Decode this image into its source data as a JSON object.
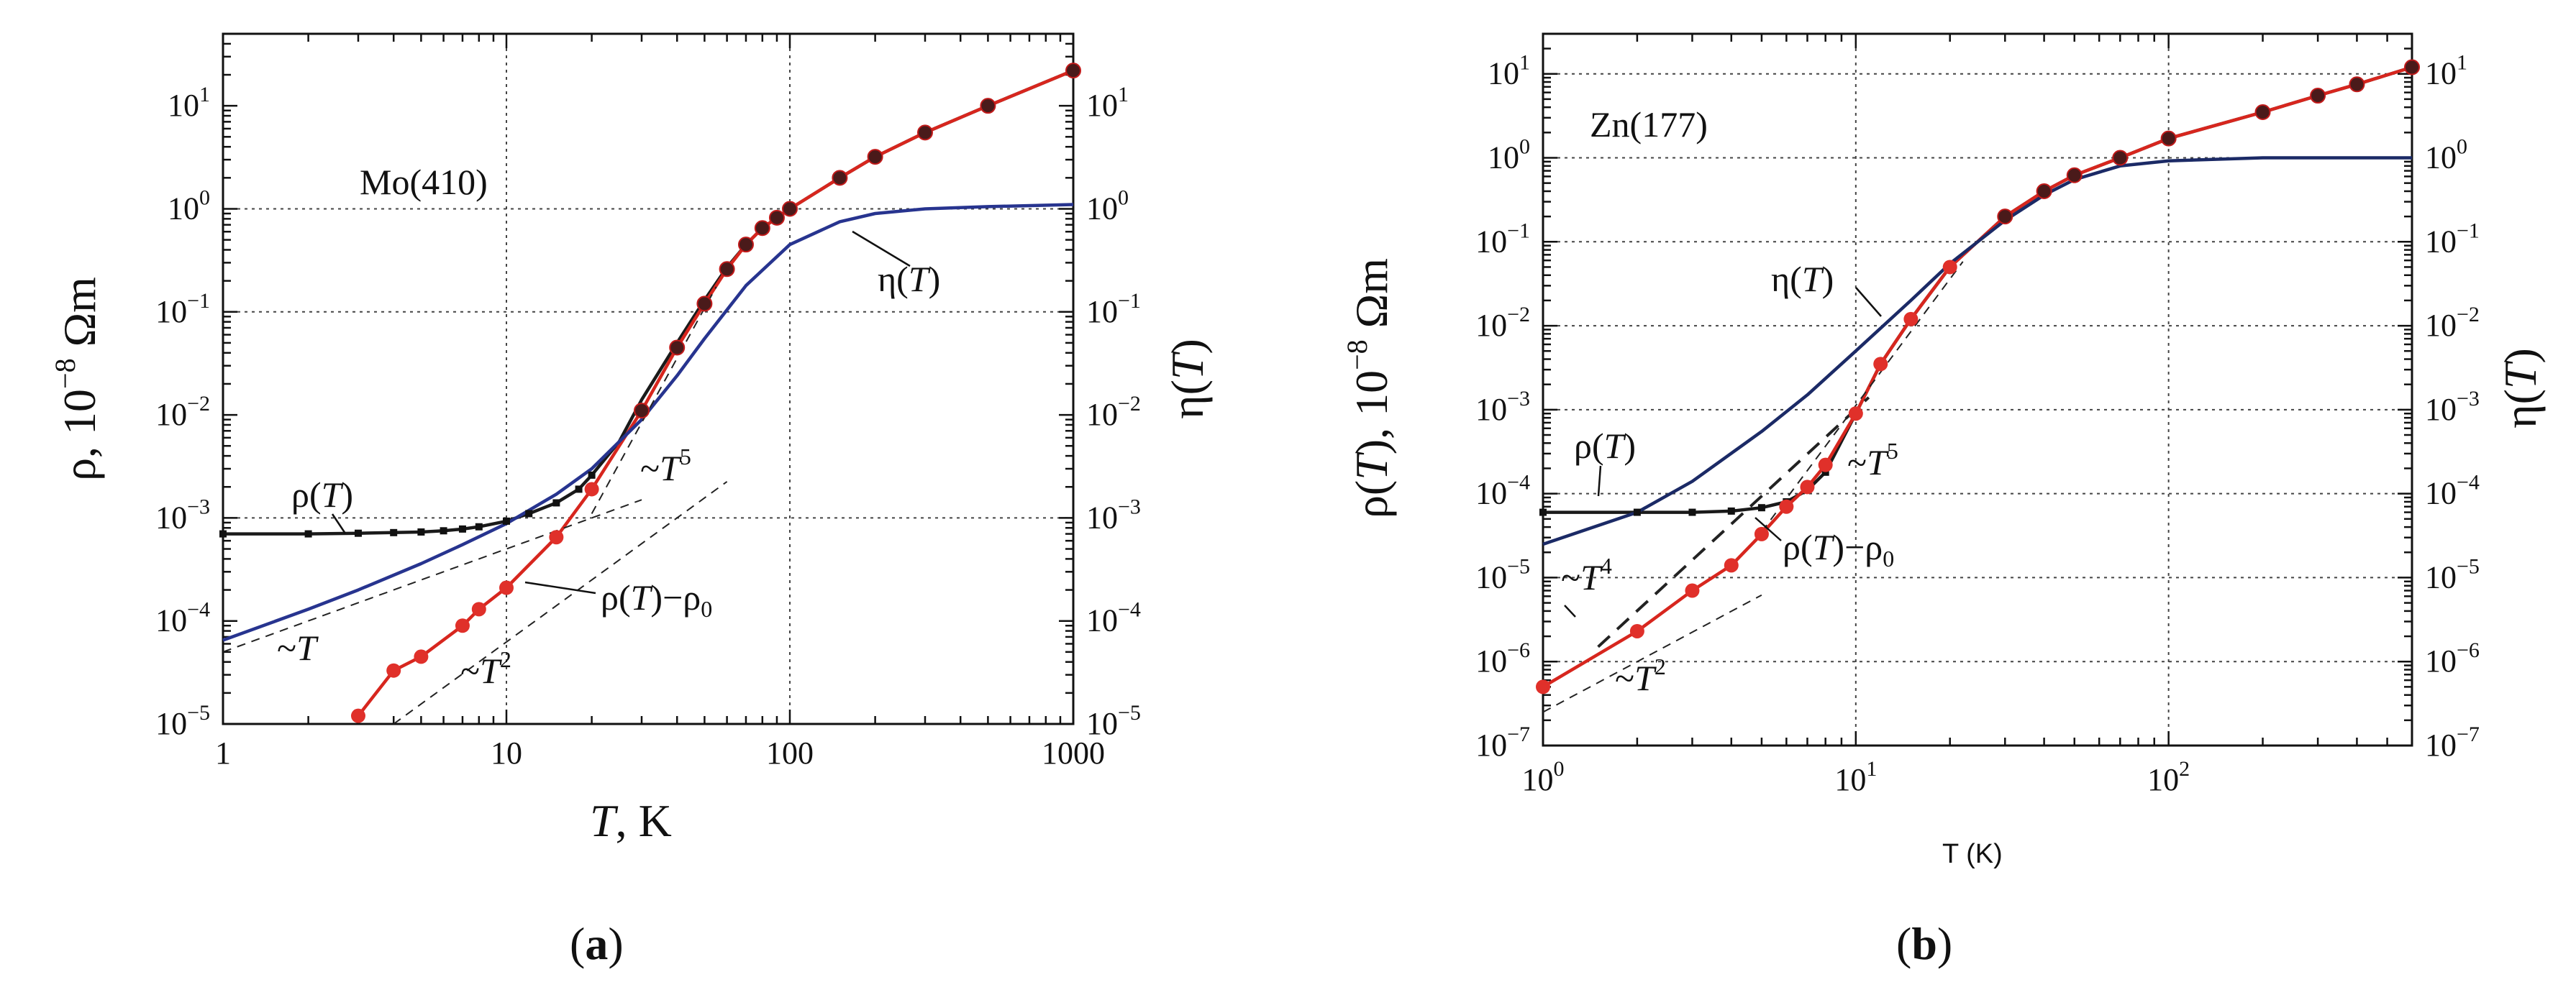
{
  "figure": {
    "panel_a_label": "(a)",
    "panel_b_label": "(b)"
  },
  "chart_data": [
    {
      "type": "line",
      "id": "a",
      "sample_label": "Mo(410)",
      "xlabel": "T, K",
      "ylabel_left": "ρ, 10⁻⁸ Ωm",
      "ylabel_right": "η(T)",
      "xscale": "log",
      "yscale": "log",
      "xlim": [
        1,
        1000
      ],
      "ylim": [
        1e-05,
        50
      ],
      "x_ticks": [
        1,
        10,
        100,
        1000
      ],
      "x_tick_labels": [
        "1",
        "10",
        "100",
        "1000"
      ],
      "y_ticks": [
        -5,
        -4,
        -3,
        -2,
        -1,
        0,
        1
      ],
      "grid": "dotted at decades (x: 10, 100; y: 1e-3, 1e-1, 1)",
      "annotations": [
        "Mo(410)",
        "η(T)",
        "ρ(T)",
        "ρ(T)−ρ₀",
        "~T",
        "~T²",
        "~T⁵"
      ],
      "series": [
        {
          "name": "ρ(T)",
          "color": "#1a1a1a",
          "x": [
            1,
            2,
            3,
            4,
            5,
            6,
            7,
            8,
            10,
            12,
            15,
            18,
            20,
            25,
            30,
            40,
            50,
            60,
            70,
            80,
            90,
            100,
            150,
            200,
            300,
            500,
            1000
          ],
          "y": [
            0.0007,
            0.0007,
            0.00071,
            0.00072,
            0.00073,
            0.00075,
            0.00078,
            0.00082,
            0.00093,
            0.0011,
            0.0014,
            0.0019,
            0.0026,
            0.0055,
            0.014,
            0.05,
            0.13,
            0.27,
            0.45,
            0.65,
            0.82,
            1.0,
            2.0,
            3.2,
            5.5,
            10,
            22
          ]
        },
        {
          "name": "ρ(T)−ρ₀",
          "color": "#d7261e",
          "x": [
            3,
            4,
            5,
            7,
            8,
            10,
            15,
            20,
            30,
            40,
            50,
            60,
            70,
            80,
            90,
            100,
            150,
            200,
            300,
            500,
            1000
          ],
          "y": [
            1.2e-05,
            3.3e-05,
            4.5e-05,
            9e-05,
            0.00013,
            0.00021,
            0.00065,
            0.0019,
            0.011,
            0.045,
            0.12,
            0.26,
            0.45,
            0.65,
            0.82,
            1.0,
            2.0,
            3.2,
            5.5,
            10,
            22
          ]
        },
        {
          "name": "η(T)",
          "color": "#27348f",
          "x": [
            1,
            2,
            3,
            5,
            7,
            10,
            15,
            20,
            30,
            40,
            50,
            70,
            100,
            150,
            200,
            300,
            500,
            1000
          ],
          "y": [
            6.5e-05,
            0.00013,
            0.0002,
            0.00036,
            0.00055,
            0.00088,
            0.0017,
            0.003,
            0.009,
            0.024,
            0.055,
            0.18,
            0.45,
            0.75,
            0.9,
            1.0,
            1.05,
            1.1
          ]
        },
        {
          "name": "~T",
          "style": "dashed",
          "x": [
            1,
            30
          ],
          "y": [
            5e-05,
            0.0015
          ]
        },
        {
          "name": "~T²",
          "style": "dashed",
          "x": [
            4,
            60
          ],
          "y": [
            1e-05,
            0.00225
          ]
        },
        {
          "name": "~T⁵",
          "style": "dashed",
          "x": [
            20,
            55
          ],
          "y": [
            0.0011,
            0.175
          ]
        }
      ]
    },
    {
      "type": "line",
      "id": "b",
      "sample_label": "Zn(177)",
      "xlabel": "T (K)",
      "ylabel_left": "ρ(T), 10⁻⁸ Ωm",
      "ylabel_right": "η(T)",
      "xscale": "log",
      "yscale": "log",
      "xlim": [
        1,
        600
      ],
      "ylim": [
        1e-07,
        30
      ],
      "x_ticks": [
        1,
        10,
        100
      ],
      "y_ticks": [
        -7,
        -6,
        -5,
        -4,
        -3,
        -2,
        -1,
        0,
        1
      ],
      "grid": "dotted at decades",
      "annotations": [
        "Zn(177)",
        "η(T)",
        "ρ(T)",
        "ρ(T)−ρ₀",
        "~T²",
        "~T⁴",
        "~T⁵"
      ],
      "series": [
        {
          "name": "ρ(T)",
          "color": "#1a1a1a",
          "x": [
            1,
            2,
            3,
            4,
            5,
            6,
            7,
            8,
            10,
            12,
            15,
            20,
            30,
            40,
            50,
            70,
            100,
            200,
            300,
            400,
            600
          ],
          "y": [
            6e-05,
            6e-05,
            6e-05,
            6.2e-05,
            6.8e-05,
            8e-05,
            0.00011,
            0.00018,
            0.0009,
            0.0035,
            0.012,
            0.05,
            0.2,
            0.4,
            0.62,
            1.0,
            1.7,
            3.5,
            5.5,
            7.5,
            12
          ]
        },
        {
          "name": "ρ(T)−ρ₀",
          "color": "#d7261e",
          "x": [
            1,
            2,
            3,
            4,
            5,
            6,
            7,
            8,
            10,
            12,
            15,
            20,
            30,
            40,
            50,
            70,
            100,
            200,
            300,
            400,
            600
          ],
          "y": [
            5e-07,
            2.3e-06,
            7e-06,
            1.4e-05,
            3.3e-05,
            7e-05,
            0.00012,
            0.00022,
            0.0009,
            0.0035,
            0.012,
            0.05,
            0.2,
            0.4,
            0.62,
            1.0,
            1.7,
            3.5,
            5.5,
            7.5,
            12
          ]
        },
        {
          "name": "η(T)",
          "color": "#1b2a66",
          "x": [
            1,
            2,
            3,
            5,
            7,
            10,
            15,
            20,
            30,
            40,
            50,
            70,
            100,
            200,
            600
          ],
          "y": [
            2.5e-05,
            6e-05,
            0.00014,
            0.00055,
            0.0015,
            0.005,
            0.02,
            0.055,
            0.18,
            0.36,
            0.55,
            0.8,
            0.92,
            1.0,
            1.0
          ]
        },
        {
          "name": "~T⁴",
          "style": "dashed",
          "x": [
            1.5,
            11
          ],
          "y": [
            1.5e-06,
            0.0014
          ]
        },
        {
          "name": "~T²",
          "style": "dashed",
          "x": [
            1,
            5
          ],
          "y": [
            2.5e-07,
            6.2e-06
          ]
        },
        {
          "name": "~T⁵",
          "style": "dashed",
          "x": [
            5,
            22
          ],
          "y": [
            3.5e-05,
            0.058
          ]
        }
      ]
    }
  ]
}
